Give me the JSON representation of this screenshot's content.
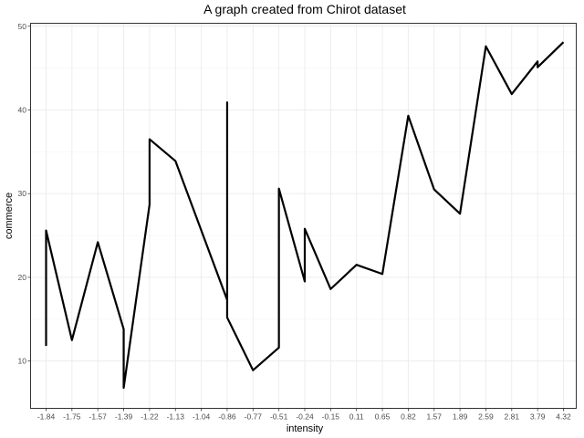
{
  "chart_data": {
    "type": "line",
    "title": "A graph created from Chirot dataset",
    "xlabel": "intensity",
    "ylabel": "commerce",
    "categories": [
      "-1.84",
      "-1.75",
      "-1.57",
      "-1.39",
      "-1.22",
      "-1.13",
      "-1.04",
      "-0.86",
      "-0.77",
      "-0.51",
      "-0.24",
      "-0.15",
      "0.11",
      "0.65",
      "0.82",
      "1.57",
      "1.89",
      "2.59",
      "2.81",
      "3.79",
      "4.32"
    ],
    "x_scale": "discrete",
    "ylim": [
      4.4,
      50.3
    ],
    "y_ticks": [
      10,
      20,
      30,
      40,
      50
    ],
    "grid": true,
    "legend": "none",
    "color": "#000000",
    "points": [
      {
        "x": "-1.84",
        "y": 11.8
      },
      {
        "x": "-1.84",
        "y": 25.6
      },
      {
        "x": "-1.75",
        "y": 12.5
      },
      {
        "x": "-1.57",
        "y": 24.2
      },
      {
        "x": "-1.39",
        "y": 13.8
      },
      {
        "x": "-1.39",
        "y": 6.8
      },
      {
        "x": "-1.22",
        "y": 28.7
      },
      {
        "x": "-1.22",
        "y": 36.5
      },
      {
        "x": "-1.13",
        "y": 33.9
      },
      {
        "x": "-1.04",
        "y": 25.6
      },
      {
        "x": "-0.86",
        "y": 17.3
      },
      {
        "x": "-0.86",
        "y": 40.9
      },
      {
        "x": "-0.86",
        "y": 15.2
      },
      {
        "x": "-0.77",
        "y": 8.9
      },
      {
        "x": "-0.51",
        "y": 11.6
      },
      {
        "x": "-0.51",
        "y": 30.6
      },
      {
        "x": "-0.24",
        "y": 19.5
      },
      {
        "x": "-0.24",
        "y": 25.8
      },
      {
        "x": "-0.15",
        "y": 18.6
      },
      {
        "x": "0.11",
        "y": 21.5
      },
      {
        "x": "0.65",
        "y": 20.4
      },
      {
        "x": "0.82",
        "y": 39.3
      },
      {
        "x": "1.57",
        "y": 30.5
      },
      {
        "x": "1.89",
        "y": 27.6
      },
      {
        "x": "2.59",
        "y": 47.6
      },
      {
        "x": "2.81",
        "y": 41.9
      },
      {
        "x": "3.79",
        "y": 45.8
      },
      {
        "x": "3.79",
        "y": 45.1
      },
      {
        "x": "4.32",
        "y": 48.1
      }
    ]
  }
}
